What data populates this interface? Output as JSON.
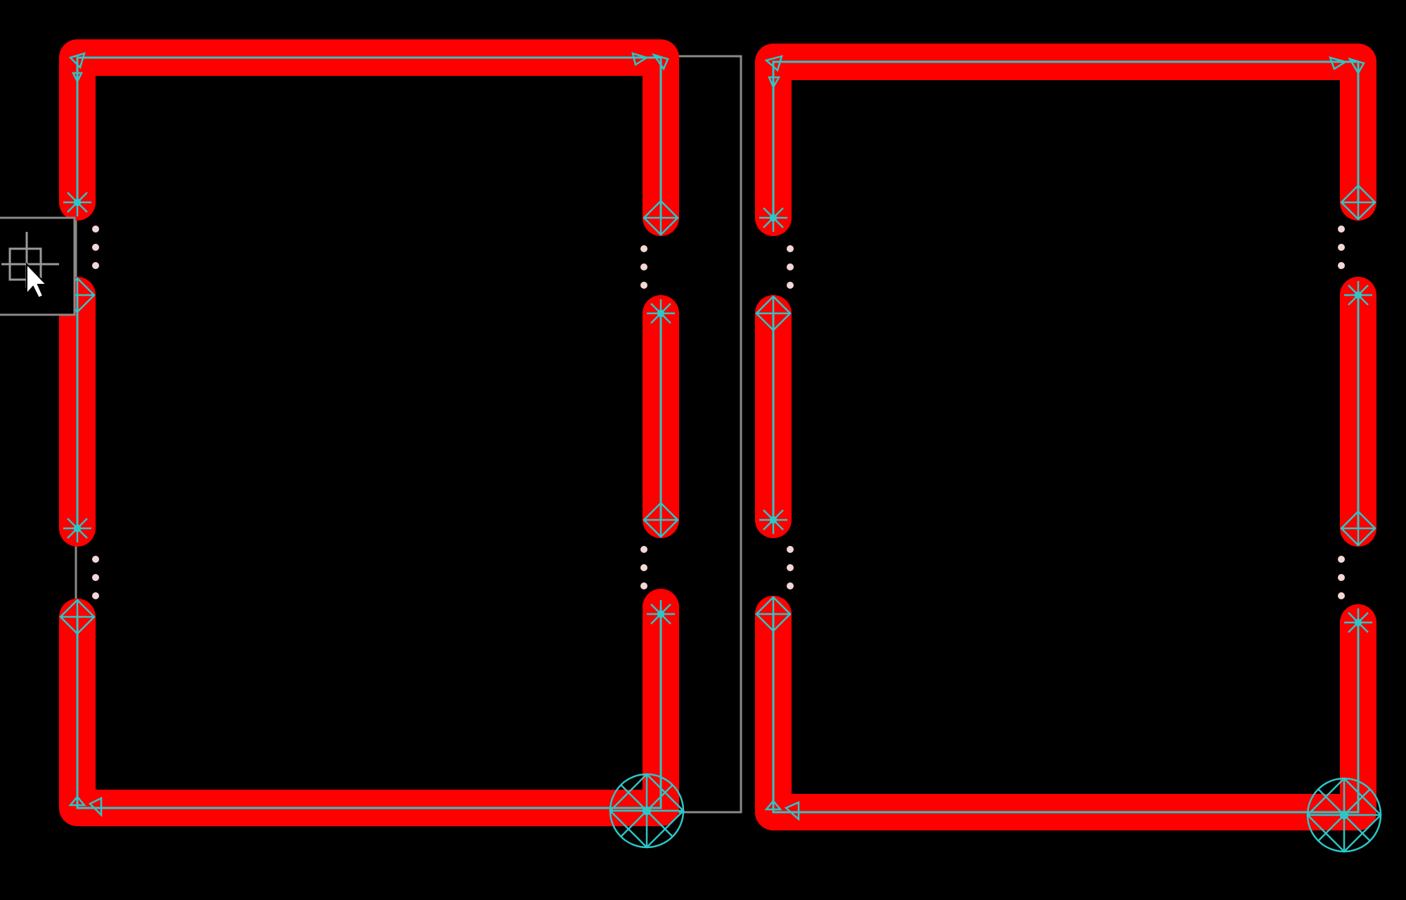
{
  "colors": {
    "background": "#000000",
    "trace": "#ff0000",
    "centerline": "#2cc6c6",
    "bbox": "#8a8a8a",
    "via_dot": "#f3d6d6"
  },
  "tool": {
    "cursor_icon": "pointer-arrow-icon",
    "tool_icon": "crosshair-tool-icon"
  }
}
